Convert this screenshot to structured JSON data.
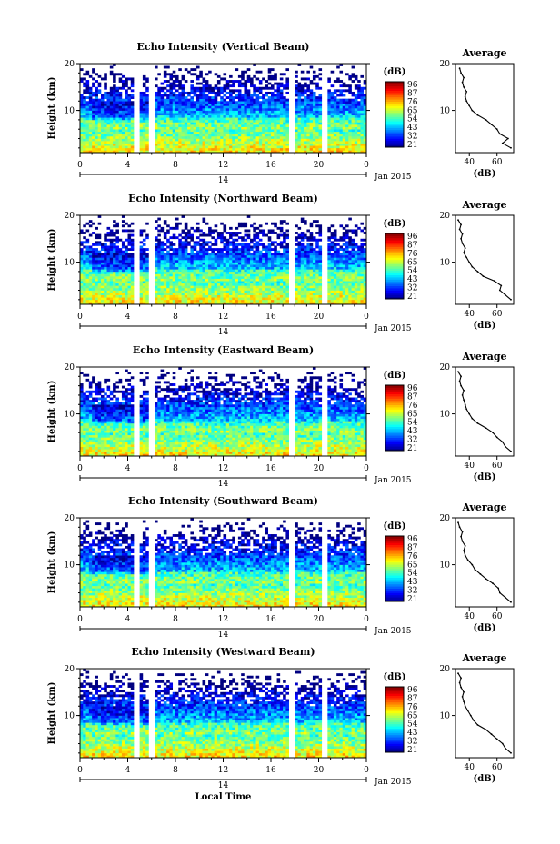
{
  "chart_data": [
    {
      "type": "heatmap",
      "title": "Echo Intensity (Vertical Beam)",
      "ylabel": "Height (km)",
      "ylim": [
        1,
        20
      ],
      "yticks": [
        "20",
        "10"
      ],
      "xlim": [
        0,
        24
      ],
      "xticks": [
        "0",
        "4",
        "8",
        "12",
        "16",
        "20",
        "0"
      ],
      "day_label": "14",
      "date_label": "Jan 2015",
      "colorbar": {
        "unit": "(dB)",
        "ticks": [
          "96",
          "87",
          "76",
          "65",
          "54",
          "43",
          "32",
          "21"
        ],
        "range": [
          21,
          96
        ]
      },
      "gaps_hours": [
        [
          4.6,
          4.9
        ],
        [
          5.8,
          6.1
        ],
        [
          17.6,
          17.9
        ],
        [
          20.4,
          20.7
        ]
      ],
      "profile": {
        "title": "Average",
        "xlabel": "(dB)",
        "xticks": [
          "40",
          "60"
        ],
        "yticks": [
          "20",
          "10"
        ],
        "xlim": [
          30,
          72
        ],
        "height_km": [
          2,
          3,
          4,
          5,
          6,
          7,
          8,
          9,
          10,
          11,
          12,
          13,
          14,
          15,
          16,
          17,
          18,
          19
        ],
        "values_db": [
          70,
          64,
          68,
          62,
          60,
          56,
          52,
          46,
          42,
          40,
          38,
          37,
          38,
          36,
          35,
          36,
          34,
          33
        ]
      }
    },
    {
      "type": "heatmap",
      "title": "Echo Intensity (Northward Beam)",
      "ylabel": "Height (km)",
      "ylim": [
        1,
        20
      ],
      "yticks": [
        "20",
        "10"
      ],
      "xlim": [
        0,
        24
      ],
      "xticks": [
        "0",
        "4",
        "8",
        "12",
        "16",
        "20",
        "0"
      ],
      "day_label": "14",
      "date_label": "Jan 2015",
      "colorbar": {
        "unit": "(dB)",
        "ticks": [
          "96",
          "87",
          "76",
          "65",
          "54",
          "43",
          "32",
          "21"
        ],
        "range": [
          21,
          96
        ]
      },
      "gaps_hours": [
        [
          4.6,
          4.9
        ],
        [
          5.8,
          6.1
        ],
        [
          17.6,
          17.9
        ],
        [
          20.4,
          20.7
        ]
      ],
      "profile": {
        "title": "Average",
        "xlabel": "(dB)",
        "xticks": [
          "40",
          "60"
        ],
        "yticks": [
          "20",
          "10"
        ],
        "xlim": [
          30,
          72
        ],
        "height_km": [
          2,
          3,
          4,
          5,
          6,
          7,
          8,
          9,
          10,
          11,
          12,
          13,
          14,
          15,
          16,
          17,
          18,
          19
        ],
        "values_db": [
          70,
          66,
          62,
          63,
          58,
          50,
          46,
          42,
          40,
          38,
          36,
          37,
          35,
          34,
          35,
          33,
          34,
          32
        ]
      }
    },
    {
      "type": "heatmap",
      "title": "Echo Intensity (Eastward Beam)",
      "ylabel": "Height (km)",
      "ylim": [
        1,
        20
      ],
      "yticks": [
        "20",
        "10"
      ],
      "xlim": [
        0,
        24
      ],
      "xticks": [
        "0",
        "4",
        "8",
        "12",
        "16",
        "20",
        "0"
      ],
      "day_label": "14",
      "date_label": "Jan 2015",
      "colorbar": {
        "unit": "(dB)",
        "ticks": [
          "96",
          "87",
          "76",
          "65",
          "54",
          "43",
          "32",
          "21"
        ],
        "range": [
          21,
          96
        ]
      },
      "gaps_hours": [
        [
          4.6,
          4.9
        ],
        [
          5.8,
          6.1
        ],
        [
          17.6,
          17.9
        ],
        [
          20.4,
          20.7
        ]
      ],
      "profile": {
        "title": "Average",
        "xlabel": "(dB)",
        "xticks": [
          "40",
          "60"
        ],
        "yticks": [
          "20",
          "10"
        ],
        "xlim": [
          30,
          72
        ],
        "height_km": [
          2,
          3,
          4,
          5,
          6,
          7,
          8,
          9,
          10,
          11,
          12,
          13,
          14,
          15,
          16,
          17,
          18,
          19
        ],
        "values_db": [
          70,
          66,
          64,
          60,
          57,
          52,
          46,
          42,
          40,
          38,
          37,
          36,
          35,
          36,
          34,
          33,
          34,
          32
        ]
      }
    },
    {
      "type": "heatmap",
      "title": "Echo Intensity (Southward Beam)",
      "ylabel": "Height (km)",
      "ylim": [
        1,
        20
      ],
      "yticks": [
        "20",
        "10"
      ],
      "xlim": [
        0,
        24
      ],
      "xticks": [
        "0",
        "4",
        "8",
        "12",
        "16",
        "20",
        "0"
      ],
      "day_label": "14",
      "date_label": "Jan 2015",
      "colorbar": {
        "unit": "(dB)",
        "ticks": [
          "96",
          "87",
          "76",
          "65",
          "54",
          "43",
          "32",
          "21"
        ],
        "range": [
          21,
          96
        ]
      },
      "gaps_hours": [
        [
          4.6,
          4.9
        ],
        [
          5.8,
          6.1
        ],
        [
          17.6,
          17.9
        ],
        [
          20.4,
          20.7
        ]
      ],
      "profile": {
        "title": "Average",
        "xlabel": "(dB)",
        "xticks": [
          "40",
          "60"
        ],
        "yticks": [
          "20",
          "10"
        ],
        "xlim": [
          30,
          72
        ],
        "height_km": [
          2,
          3,
          4,
          5,
          6,
          7,
          8,
          9,
          10,
          11,
          12,
          13,
          14,
          15,
          16,
          17,
          18,
          19
        ],
        "values_db": [
          70,
          66,
          62,
          61,
          57,
          52,
          48,
          44,
          42,
          39,
          37,
          36,
          37,
          35,
          34,
          35,
          33,
          32
        ]
      }
    },
    {
      "type": "heatmap",
      "title": "Echo Intensity (Westward Beam)",
      "ylabel": "Height (km)",
      "ylim": [
        1,
        20
      ],
      "yticks": [
        "20",
        "10"
      ],
      "xlim": [
        0,
        24
      ],
      "xticks": [
        "0",
        "4",
        "8",
        "12",
        "16",
        "20",
        "0"
      ],
      "day_label": "14",
      "date_label": "Jan 2015",
      "xlabel": "Local Time",
      "colorbar": {
        "unit": "(dB)",
        "ticks": [
          "96",
          "87",
          "76",
          "65",
          "54",
          "43",
          "32",
          "21"
        ],
        "range": [
          21,
          96
        ]
      },
      "gaps_hours": [
        [
          4.6,
          4.9
        ],
        [
          5.8,
          6.1
        ],
        [
          17.6,
          17.9
        ],
        [
          20.4,
          20.7
        ]
      ],
      "profile": {
        "title": "Average",
        "xlabel": "(dB)",
        "xticks": [
          "40",
          "60"
        ],
        "yticks": [
          "20",
          "10"
        ],
        "xlim": [
          30,
          72
        ],
        "height_km": [
          2,
          3,
          4,
          5,
          6,
          7,
          8,
          9,
          10,
          11,
          12,
          13,
          14,
          15,
          16,
          17,
          18,
          19
        ],
        "values_db": [
          70,
          66,
          64,
          60,
          56,
          52,
          46,
          43,
          41,
          39,
          37,
          36,
          35,
          36,
          34,
          33,
          34,
          32
        ]
      }
    }
  ]
}
